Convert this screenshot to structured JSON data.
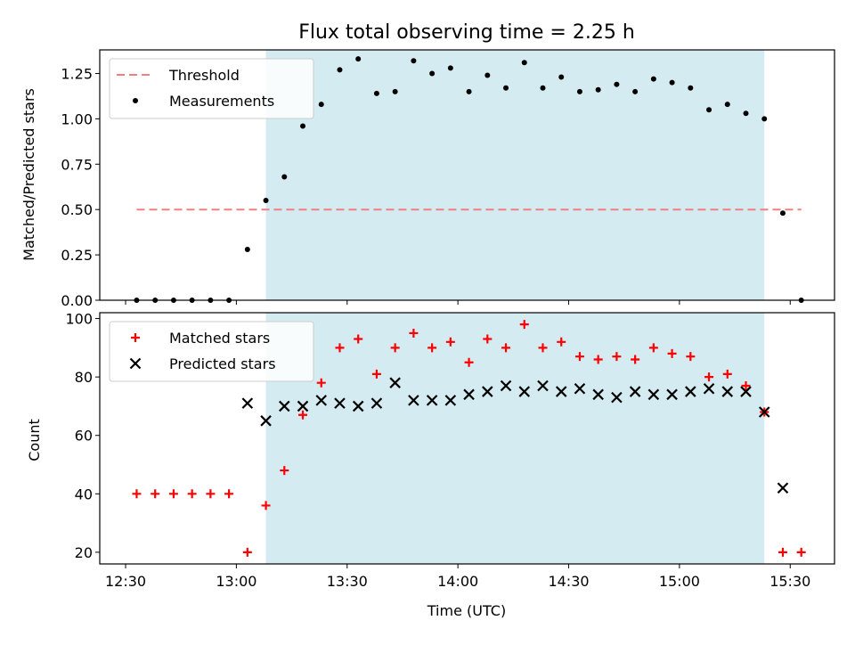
{
  "chart_data": {
    "title": "Flux total observing time = 2.25 h",
    "xlabel": "Time (UTC)",
    "x_ticks": [
      "12:30",
      "13:00",
      "13:30",
      "14:00",
      "14:30",
      "15:00",
      "15:30"
    ],
    "x_range": [
      "12:23",
      "15:42"
    ],
    "shaded_interval": {
      "start": "13:08",
      "end": "15:23",
      "color": "#d4ebf1"
    },
    "panels": [
      {
        "type": "scatter",
        "ylabel": "Matched/Predicted stars",
        "ylim": [
          0,
          1.38
        ],
        "y_ticks": [
          "0.00",
          "0.25",
          "0.50",
          "0.75",
          "1.00",
          "1.25"
        ],
        "legend": {
          "placement": "top-left",
          "entries": [
            "Threshold",
            "Measurements"
          ]
        },
        "threshold": {
          "name": "Threshold",
          "value": 0.5,
          "x_start": "12:33",
          "x_end": "15:33",
          "color": "#f08080"
        },
        "series": [
          {
            "name": "Measurements",
            "marker": "dot",
            "color": "#000000",
            "x": [
              "12:33",
              "12:38",
              "12:43",
              "12:48",
              "12:53",
              "12:58",
              "13:03",
              "13:08",
              "13:13",
              "13:18",
              "13:23",
              "13:28",
              "13:33",
              "13:38",
              "13:43",
              "13:48",
              "13:53",
              "13:58",
              "14:03",
              "14:08",
              "14:13",
              "14:18",
              "14:23",
              "14:28",
              "14:33",
              "14:38",
              "14:43",
              "14:48",
              "14:53",
              "14:58",
              "15:03",
              "15:08",
              "15:13",
              "15:18",
              "15:23",
              "15:28",
              "15:33"
            ],
            "y": [
              0,
              0,
              0,
              0,
              0,
              0,
              0.28,
              0.55,
              0.68,
              0.96,
              1.08,
              1.27,
              1.33,
              1.14,
              1.15,
              1.32,
              1.25,
              1.28,
              1.15,
              1.24,
              1.17,
              1.31,
              1.17,
              1.23,
              1.15,
              1.16,
              1.19,
              1.15,
              1.22,
              1.2,
              1.17,
              1.05,
              1.08,
              1.03,
              1.0,
              0.48,
              0
            ]
          }
        ]
      },
      {
        "type": "scatter",
        "ylabel": "Count",
        "ylim": [
          16,
          102
        ],
        "y_ticks": [
          "20",
          "40",
          "60",
          "80",
          "100"
        ],
        "legend": {
          "placement": "top-left",
          "entries": [
            "Matched stars",
            "Predicted stars"
          ]
        },
        "series": [
          {
            "name": "Matched stars",
            "marker": "plus",
            "color": "#ff0000",
            "x": [
              "12:33",
              "12:38",
              "12:43",
              "12:48",
              "12:53",
              "12:58",
              "13:03",
              "13:08",
              "13:13",
              "13:18",
              "13:23",
              "13:28",
              "13:33",
              "13:38",
              "13:43",
              "13:48",
              "13:53",
              "13:58",
              "14:03",
              "14:08",
              "14:13",
              "14:18",
              "14:23",
              "14:28",
              "14:33",
              "14:38",
              "14:43",
              "14:48",
              "14:53",
              "14:58",
              "15:03",
              "15:08",
              "15:13",
              "15:18",
              "15:23",
              "15:28",
              "15:33"
            ],
            "y": [
              40,
              40,
              40,
              40,
              40,
              40,
              20,
              36,
              48,
              67,
              78,
              90,
              93,
              81,
              90,
              95,
              90,
              92,
              85,
              93,
              90,
              98,
              90,
              92,
              87,
              86,
              87,
              86,
              90,
              88,
              87,
              80,
              81,
              77,
              68,
              20,
              20
            ]
          },
          {
            "name": "Predicted stars",
            "marker": "x",
            "color": "#000000",
            "x": [
              "13:03",
              "13:08",
              "13:13",
              "13:18",
              "13:23",
              "13:28",
              "13:33",
              "13:38",
              "13:43",
              "13:48",
              "13:53",
              "13:58",
              "14:03",
              "14:08",
              "14:13",
              "14:18",
              "14:23",
              "14:28",
              "14:33",
              "14:38",
              "14:43",
              "14:48",
              "14:53",
              "14:58",
              "15:03",
              "15:08",
              "15:13",
              "15:18",
              "15:23",
              "15:28"
            ],
            "y": [
              71,
              65,
              70,
              70,
              72,
              71,
              70,
              71,
              78,
              72,
              72,
              72,
              74,
              75,
              77,
              75,
              77,
              75,
              76,
              74,
              73,
              75,
              74,
              74,
              75,
              76,
              75,
              75,
              68,
              42
            ]
          }
        ]
      }
    ]
  }
}
